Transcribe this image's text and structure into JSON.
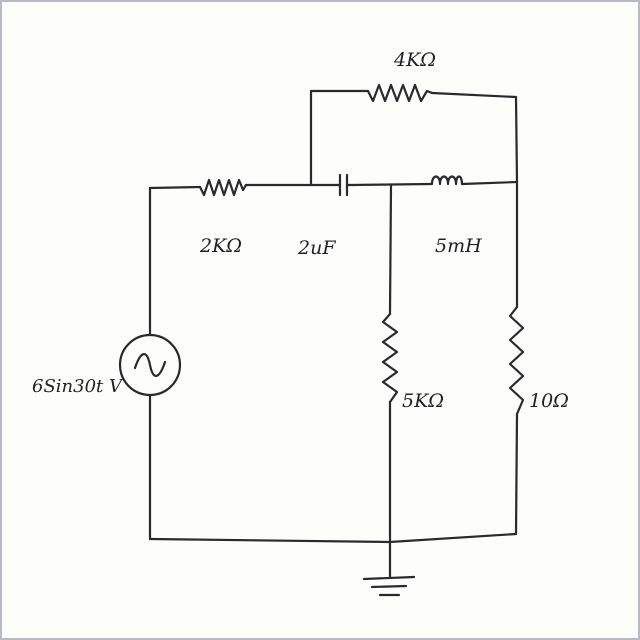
{
  "diagram": {
    "components": {
      "r_4k": {
        "label": "4KΩ"
      },
      "r_2k": {
        "label": "2KΩ"
      },
      "c_2u": {
        "label": "2uF"
      },
      "l_5m": {
        "label": "5mH"
      },
      "r_5k": {
        "label": "5KΩ"
      },
      "r_10": {
        "label": "10Ω"
      },
      "source": {
        "label": "6Sin30t V"
      }
    },
    "icons": [
      "ac-source-icon",
      "ground-icon",
      "resistor-icon",
      "capacitor-icon",
      "inductor-icon"
    ],
    "colors": {
      "ink": "#2a2a2e",
      "paper": "#fdfdfc",
      "frame": "#b9bcc0"
    }
  }
}
